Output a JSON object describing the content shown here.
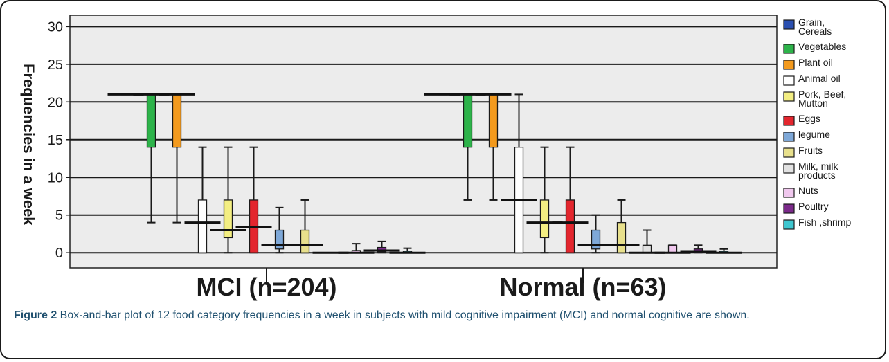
{
  "chart_data": {
    "type": "box",
    "ylabel": "Frequencies in a week",
    "ylim": [
      -2,
      31.5
    ],
    "yticks": [
      0,
      5,
      10,
      15,
      20,
      25,
      30
    ],
    "grid": true,
    "legend_position": "right",
    "groups": [
      "MCI (n=204)",
      "Normal (n=63)"
    ],
    "series": [
      {
        "name": "Grain, Cereals",
        "color": "#2a4fb0",
        "stats": [
          {
            "min": 21,
            "q1": 21,
            "median": 21,
            "q3": 21,
            "max": 21
          },
          {
            "min": 21,
            "q1": 21,
            "median": 21,
            "q3": 21,
            "max": 21
          }
        ]
      },
      {
        "name": "Vegetables",
        "color": "#2db34a",
        "stats": [
          {
            "min": 4,
            "q1": 14,
            "median": 21,
            "q3": 21,
            "max": 21
          },
          {
            "min": 7,
            "q1": 14,
            "median": 21,
            "q3": 21,
            "max": 21
          }
        ]
      },
      {
        "name": "Plant  oil",
        "color": "#f39a1e",
        "stats": [
          {
            "min": 4,
            "q1": 14,
            "median": 21,
            "q3": 21,
            "max": 21
          },
          {
            "min": 7,
            "q1": 14,
            "median": 21,
            "q3": 21,
            "max": 21
          }
        ]
      },
      {
        "name": "Animal oil",
        "color": "#ffffff",
        "stats": [
          {
            "min": 0,
            "q1": 0,
            "median": 4,
            "q3": 7,
            "max": 14
          },
          {
            "min": 0,
            "q1": 0,
            "median": 7,
            "q3": 14,
            "max": 21
          }
        ]
      },
      {
        "name": "Pork, Beef, Mutton",
        "color": "#f3ee82",
        "stats": [
          {
            "min": 0,
            "q1": 2,
            "median": 3,
            "q3": 7,
            "max": 14
          },
          {
            "min": 0,
            "q1": 2,
            "median": 4,
            "q3": 7,
            "max": 14
          }
        ]
      },
      {
        "name": "Eggs",
        "color": "#e3262e",
        "stats": [
          {
            "min": 0,
            "q1": 0,
            "median": 3.4,
            "q3": 7,
            "max": 14
          },
          {
            "min": 0,
            "q1": 0,
            "median": 4,
            "q3": 7,
            "max": 14
          }
        ]
      },
      {
        "name": "legume",
        "color": "#7ea8d8",
        "stats": [
          {
            "min": 0,
            "q1": 0.5,
            "median": 1,
            "q3": 3,
            "max": 6
          },
          {
            "min": 0,
            "q1": 0.5,
            "median": 1,
            "q3": 3,
            "max": 5
          }
        ]
      },
      {
        "name": "Fruits",
        "color": "#e8e08c",
        "stats": [
          {
            "min": 0,
            "q1": 0,
            "median": 1,
            "q3": 3,
            "max": 7
          },
          {
            "min": 0,
            "q1": 0,
            "median": 1,
            "q3": 4,
            "max": 7
          }
        ]
      },
      {
        "name": "Milk, milk products",
        "color": "#e2e2e2",
        "stats": [
          {
            "min": 0,
            "q1": 0,
            "median": 0,
            "q3": 0,
            "max": 0
          },
          {
            "min": 0,
            "q1": 0,
            "median": 0,
            "q3": 1,
            "max": 3
          }
        ]
      },
      {
        "name": "Nuts",
        "color": "#f0c8ee",
        "stats": [
          {
            "min": 0,
            "q1": 0,
            "median": 0,
            "q3": 0.3,
            "max": 1.2
          },
          {
            "min": 0,
            "q1": 0,
            "median": 0,
            "q3": 1,
            "max": 1
          }
        ]
      },
      {
        "name": "Poultry",
        "color": "#7b2a8a",
        "stats": [
          {
            "min": 0,
            "q1": 0.1,
            "median": 0.3,
            "q3": 0.7,
            "max": 1.5
          },
          {
            "min": 0,
            "q1": 0,
            "median": 0.2,
            "q3": 0.5,
            "max": 1
          }
        ]
      },
      {
        "name": "Fish ,shrimp",
        "color": "#3ec6cf",
        "stats": [
          {
            "min": 0,
            "q1": 0,
            "median": 0,
            "q3": 0.2,
            "max": 0.6
          },
          {
            "min": 0,
            "q1": 0,
            "median": 0,
            "q3": 0.2,
            "max": 0.5
          }
        ]
      }
    ],
    "legend_lines": [
      [
        "Grain,",
        "Cereals"
      ],
      [
        "Vegetables"
      ],
      [
        "Plant  oil"
      ],
      [
        "Animal oil"
      ],
      [
        "Pork, Beef,",
        "Mutton"
      ],
      [
        "Eggs"
      ],
      [
        "legume"
      ],
      [
        "Fruits"
      ],
      [
        "Milk, milk",
        "products"
      ],
      [
        "Nuts"
      ],
      [
        "Poultry"
      ],
      [
        "Fish ,shrimp"
      ]
    ]
  },
  "caption": {
    "label": "Figure 2",
    "text": " Box-and-bar plot of 12 food category frequencies in a week in subjects with mild cognitive impairment (MCI) and normal cognitive are shown."
  }
}
